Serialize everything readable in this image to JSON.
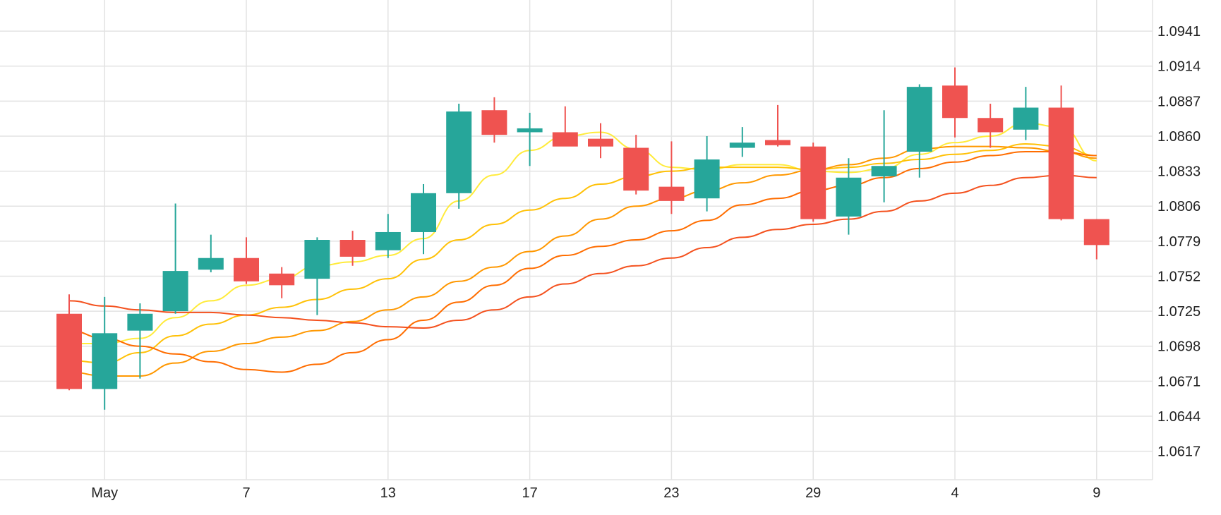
{
  "chart_data": {
    "type": "candlestick",
    "title": "",
    "xlabel": "",
    "ylabel": "",
    "ylim": [
      1.0595,
      1.0965
    ],
    "grid": true,
    "y_ticks": [
      "1.0941",
      "1.0914",
      "1.0887",
      "1.0860",
      "1.0833",
      "1.0806",
      "1.0779",
      "1.0752",
      "1.0725",
      "1.0698",
      "1.0671",
      "1.0644",
      "1.0617"
    ],
    "x_ticks": [
      {
        "label": "May",
        "index": 1
      },
      {
        "label": "7",
        "index": 5
      },
      {
        "label": "13",
        "index": 9
      },
      {
        "label": "17",
        "index": 13
      },
      {
        "label": "23",
        "index": 17
      },
      {
        "label": "29",
        "index": 21
      },
      {
        "label": "4",
        "index": 25
      },
      {
        "label": "9",
        "index": 29
      }
    ],
    "colors": {
      "up": "#26a69a",
      "down": "#ef5350",
      "grid": "#e3e3e3",
      "ma_1": "#ffeb3b",
      "ma_2": "#ffc107",
      "ma_3": "#ff9800",
      "ma_4": "#ff6d00",
      "ma_5": "#f4511e"
    },
    "candles": [
      {
        "o": 1.0723,
        "h": 1.0738,
        "l": 1.0664,
        "c": 1.0665
      },
      {
        "o": 1.0665,
        "h": 1.0736,
        "l": 1.0649,
        "c": 1.0708
      },
      {
        "o": 1.071,
        "h": 1.0731,
        "l": 1.0673,
        "c": 1.0723
      },
      {
        "o": 1.0725,
        "h": 1.0808,
        "l": 1.0723,
        "c": 1.0756
      },
      {
        "o": 1.0757,
        "h": 1.0784,
        "l": 1.0755,
        "c": 1.0766
      },
      {
        "o": 1.0766,
        "h": 1.0782,
        "l": 1.0746,
        "c": 1.0748
      },
      {
        "o": 1.0754,
        "h": 1.0759,
        "l": 1.0735,
        "c": 1.0745
      },
      {
        "o": 1.075,
        "h": 1.0782,
        "l": 1.0722,
        "c": 1.078
      },
      {
        "o": 1.078,
        "h": 1.0787,
        "l": 1.076,
        "c": 1.0767
      },
      {
        "o": 1.0772,
        "h": 1.08,
        "l": 1.0766,
        "c": 1.0786
      },
      {
        "o": 1.0786,
        "h": 1.0823,
        "l": 1.0769,
        "c": 1.0816
      },
      {
        "o": 1.0816,
        "h": 1.0885,
        "l": 1.0804,
        "c": 1.0879
      },
      {
        "o": 1.088,
        "h": 1.089,
        "l": 1.0855,
        "c": 1.0861
      },
      {
        "o": 1.0863,
        "h": 1.0878,
        "l": 1.0837,
        "c": 1.0866
      },
      {
        "o": 1.0863,
        "h": 1.0883,
        "l": 1.0855,
        "c": 1.0852
      },
      {
        "o": 1.0858,
        "h": 1.087,
        "l": 1.0843,
        "c": 1.0852
      },
      {
        "o": 1.0851,
        "h": 1.0861,
        "l": 1.0815,
        "c": 1.0818
      },
      {
        "o": 1.0821,
        "h": 1.0856,
        "l": 1.08,
        "c": 1.081
      },
      {
        "o": 1.0812,
        "h": 1.086,
        "l": 1.0802,
        "c": 1.0842
      },
      {
        "o": 1.0851,
        "h": 1.0867,
        "l": 1.0844,
        "c": 1.0855
      },
      {
        "o": 1.0857,
        "h": 1.0884,
        "l": 1.0852,
        "c": 1.0853
      },
      {
        "o": 1.0852,
        "h": 1.0855,
        "l": 1.0794,
        "c": 1.0796
      },
      {
        "o": 1.0798,
        "h": 1.0843,
        "l": 1.0784,
        "c": 1.0828
      },
      {
        "o": 1.0829,
        "h": 1.088,
        "l": 1.0809,
        "c": 1.0837
      },
      {
        "o": 1.0848,
        "h": 1.09,
        "l": 1.0828,
        "c": 1.0898
      },
      {
        "o": 1.0899,
        "h": 1.0913,
        "l": 1.0859,
        "c": 1.0874
      },
      {
        "o": 1.0874,
        "h": 1.0885,
        "l": 1.0851,
        "c": 1.0863
      },
      {
        "o": 1.0865,
        "h": 1.0898,
        "l": 1.0857,
        "c": 1.0882
      },
      {
        "o": 1.0882,
        "h": 1.0899,
        "l": 1.0795,
        "c": 1.0796
      },
      {
        "o": 1.0796,
        "h": 1.0796,
        "l": 1.0765,
        "c": 1.0776
      }
    ],
    "moving_averages": [
      {
        "color_key": "ma_1",
        "start": 0,
        "values": [
          1.07,
          1.07,
          1.0704,
          1.072,
          1.0733,
          1.0745,
          1.075,
          1.076,
          1.0763,
          1.0768,
          1.0781,
          1.081,
          1.083,
          1.0849,
          1.086,
          1.0863,
          1.085,
          1.0836,
          1.0834,
          1.0838,
          1.0838,
          1.0833,
          1.0832,
          1.0835,
          1.0846,
          1.0855,
          1.086,
          1.087,
          1.0867,
          1.0841
        ]
      },
      {
        "color_key": "ma_2",
        "start": 0,
        "values": [
          1.0687,
          1.0685,
          1.0693,
          1.0706,
          1.0715,
          1.0722,
          1.0728,
          1.0734,
          1.0742,
          1.075,
          1.0765,
          1.078,
          1.0792,
          1.0803,
          1.0812,
          1.0823,
          1.0829,
          1.0833,
          1.0836,
          1.0836,
          1.0836,
          1.0834,
          1.0836,
          1.0839,
          1.0842,
          1.0846,
          1.0849,
          1.0854,
          1.0852,
          1.0845
        ]
      },
      {
        "color_key": "ma_3",
        "start": 0,
        "values": [
          1.0678,
          1.0675,
          1.0675,
          1.0685,
          1.0694,
          1.07,
          1.0705,
          1.071,
          1.0717,
          1.0726,
          1.0736,
          1.0748,
          1.0759,
          1.0771,
          1.0783,
          1.0796,
          1.0806,
          1.0812,
          1.0818,
          1.0824,
          1.083,
          1.0834,
          1.0838,
          1.0843,
          1.085,
          1.0852,
          1.0852,
          1.0851,
          1.0848,
          1.0843
        ]
      },
      {
        "color_key": "ma_4",
        "start": 0,
        "values": [
          1.071,
          1.0704,
          1.0698,
          1.0692,
          1.0686,
          1.068,
          1.0678,
          1.0684,
          1.0693,
          1.0703,
          1.0718,
          1.0732,
          1.0745,
          1.0758,
          1.0768,
          1.0775,
          1.078,
          1.0787,
          1.0795,
          1.0807,
          1.0812,
          1.0818,
          1.0822,
          1.0828,
          1.0835,
          1.084,
          1.0845,
          1.0848,
          1.0848,
          1.0845
        ]
      },
      {
        "color_key": "ma_5",
        "start": 0,
        "values": [
          1.0733,
          1.0729,
          1.0726,
          1.0724,
          1.0724,
          1.0722,
          1.072,
          1.0718,
          1.0716,
          1.0713,
          1.0712,
          1.0718,
          1.0726,
          1.0736,
          1.0746,
          1.0754,
          1.076,
          1.0766,
          1.0774,
          1.0782,
          1.0788,
          1.0792,
          1.0796,
          1.0802,
          1.081,
          1.0816,
          1.0822,
          1.0828,
          1.083,
          1.0828
        ]
      }
    ]
  }
}
